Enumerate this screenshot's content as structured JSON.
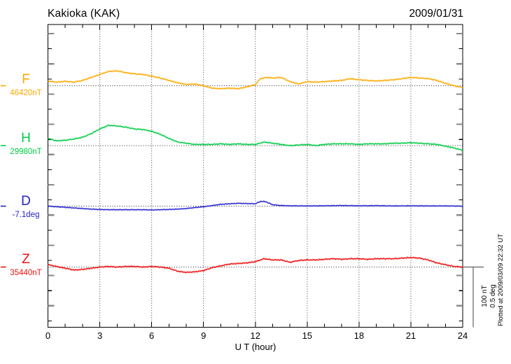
{
  "header": {
    "title": "Kakioka (KAK)",
    "date": "2009/01/31"
  },
  "footer": {
    "xlabel": "U T (hour)",
    "plotted_note": "Plotted at 2009/03/09 22:32 UT"
  },
  "scale_bar": {
    "line1": "100 nT",
    "line2": "0.5 deg"
  },
  "chart_data": {
    "type": "line",
    "title": "Kakioka (KAK)",
    "date": "2009/01/31",
    "xlabel": "U T (hour)",
    "x_range": [
      0,
      24
    ],
    "x_ticks": [
      0,
      3,
      6,
      9,
      12,
      15,
      18,
      21,
      24
    ],
    "grid": "dotted vertical lines every 3 hours; dotted horizontal baseline per trace",
    "legend_position": "left margin, one label per trace",
    "scale": {
      "nT_per_division": 100,
      "deg_per_division": 0.5
    },
    "series": [
      {
        "name": "F",
        "label": "F",
        "baseline_label": "46420nT",
        "unit": "nT",
        "color": "#FFA800",
        "points": [
          [
            0,
            8
          ],
          [
            0.5,
            6
          ],
          [
            1,
            7.5
          ],
          [
            1.5,
            6
          ],
          [
            2,
            9
          ],
          [
            2.5,
            14
          ],
          [
            3,
            19
          ],
          [
            3.5,
            24
          ],
          [
            4,
            25
          ],
          [
            4.5,
            22
          ],
          [
            5,
            20
          ],
          [
            5.5,
            19
          ],
          [
            6,
            16
          ],
          [
            6.5,
            13
          ],
          [
            7,
            9
          ],
          [
            7.5,
            5
          ],
          [
            8,
            2
          ],
          [
            8.5,
            3
          ],
          [
            9,
            0
          ],
          [
            9.5,
            -4
          ],
          [
            10,
            -5
          ],
          [
            10.5,
            -4
          ],
          [
            11,
            -5
          ],
          [
            11.5,
            -2
          ],
          [
            12,
            2
          ],
          [
            12.3,
            12
          ],
          [
            12.7,
            14
          ],
          [
            13,
            13
          ],
          [
            13.5,
            14
          ],
          [
            14,
            7
          ],
          [
            14.5,
            3
          ],
          [
            15,
            7
          ],
          [
            15.5,
            6
          ],
          [
            16,
            7
          ],
          [
            16.5,
            8
          ],
          [
            17,
            9
          ],
          [
            17.5,
            12
          ],
          [
            18,
            10
          ],
          [
            18.5,
            9
          ],
          [
            19,
            8
          ],
          [
            19.5,
            9
          ],
          [
            20,
            10
          ],
          [
            20.5,
            12
          ],
          [
            21,
            14
          ],
          [
            21.5,
            13
          ],
          [
            22,
            12
          ],
          [
            22.5,
            9
          ],
          [
            23,
            4
          ],
          [
            23.5,
            0
          ],
          [
            24,
            -3
          ]
        ]
      },
      {
        "name": "H",
        "label": "H",
        "baseline_label": "29980nT",
        "unit": "nT",
        "color": "#00CC44",
        "points": [
          [
            0,
            12
          ],
          [
            0.5,
            8
          ],
          [
            1,
            9
          ],
          [
            1.5,
            11
          ],
          [
            2,
            14
          ],
          [
            2.5,
            20
          ],
          [
            3,
            28
          ],
          [
            3.5,
            34
          ],
          [
            4,
            33
          ],
          [
            4.5,
            31
          ],
          [
            5,
            28
          ],
          [
            5.5,
            27
          ],
          [
            6,
            24
          ],
          [
            6.5,
            19
          ],
          [
            7,
            12
          ],
          [
            7.5,
            6
          ],
          [
            8,
            4
          ],
          [
            8.5,
            2
          ],
          [
            9,
            2
          ],
          [
            9.5,
            2
          ],
          [
            10,
            3
          ],
          [
            10.5,
            2
          ],
          [
            11,
            3
          ],
          [
            11.5,
            2
          ],
          [
            12,
            2
          ],
          [
            12.5,
            6
          ],
          [
            13,
            4
          ],
          [
            13.5,
            2
          ],
          [
            14,
            0
          ],
          [
            14.5,
            1
          ],
          [
            15,
            2
          ],
          [
            15.5,
            0
          ],
          [
            16,
            2
          ],
          [
            16.5,
            3
          ],
          [
            17,
            3
          ],
          [
            17.5,
            3
          ],
          [
            18,
            2
          ],
          [
            18.5,
            3
          ],
          [
            19,
            3
          ],
          [
            19.5,
            3
          ],
          [
            20,
            4
          ],
          [
            20.5,
            4
          ],
          [
            21,
            5
          ],
          [
            21.5,
            4
          ],
          [
            22,
            3
          ],
          [
            22.5,
            2
          ],
          [
            23,
            -1
          ],
          [
            23.5,
            -4
          ],
          [
            24,
            -8
          ]
        ]
      },
      {
        "name": "D",
        "label": "D",
        "baseline_label": "-7.1deg",
        "unit": "deg",
        "color": "#2222CC",
        "points": [
          [
            0,
            0
          ],
          [
            0.5,
            -0.005
          ],
          [
            1,
            -0.01
          ],
          [
            1.5,
            -0.015
          ],
          [
            2,
            -0.02
          ],
          [
            2.5,
            -0.025
          ],
          [
            3,
            -0.028
          ],
          [
            3.5,
            -0.03
          ],
          [
            4,
            -0.03
          ],
          [
            4.5,
            -0.03
          ],
          [
            5,
            -0.03
          ],
          [
            5.5,
            -0.03
          ],
          [
            6,
            -0.032
          ],
          [
            6.5,
            -0.03
          ],
          [
            7,
            -0.028
          ],
          [
            7.5,
            -0.025
          ],
          [
            8,
            -0.02
          ],
          [
            8.5,
            -0.012
          ],
          [
            9,
            -0.005
          ],
          [
            9.5,
            0.005
          ],
          [
            10,
            0.015
          ],
          [
            10.5,
            0.02
          ],
          [
            11,
            0.024
          ],
          [
            11.5,
            0.022
          ],
          [
            12,
            0.02
          ],
          [
            12.3,
            0.04
          ],
          [
            12.6,
            0.038
          ],
          [
            13,
            0.012
          ],
          [
            13.5,
            0.005
          ],
          [
            14,
            0.003
          ],
          [
            15,
            0.002
          ],
          [
            16,
            0.003
          ],
          [
            17,
            0.005
          ],
          [
            18,
            0.003
          ],
          [
            19,
            0.004
          ],
          [
            20,
            0.002
          ],
          [
            21,
            0.003
          ],
          [
            22,
            0.002
          ],
          [
            23,
            0.002
          ],
          [
            24,
            0
          ]
        ]
      },
      {
        "name": "Z",
        "label": "Z",
        "baseline_label": "35440nT",
        "unit": "nT",
        "color": "#EE1111",
        "points": [
          [
            0,
            4
          ],
          [
            0.5,
            1
          ],
          [
            1,
            -2
          ],
          [
            1.5,
            -5
          ],
          [
            2,
            -4
          ],
          [
            2.5,
            -2
          ],
          [
            3,
            0
          ],
          [
            3.5,
            1
          ],
          [
            4,
            0
          ],
          [
            4.5,
            1
          ],
          [
            5,
            1
          ],
          [
            5.5,
            0
          ],
          [
            6,
            1
          ],
          [
            6.5,
            0
          ],
          [
            7,
            -2
          ],
          [
            7.5,
            -7
          ],
          [
            8,
            -9
          ],
          [
            8.5,
            -8
          ],
          [
            9,
            -6
          ],
          [
            9.5,
            -1
          ],
          [
            10,
            2
          ],
          [
            10.5,
            5
          ],
          [
            11,
            6
          ],
          [
            11.5,
            7
          ],
          [
            12,
            9
          ],
          [
            12.5,
            14
          ],
          [
            13,
            12
          ],
          [
            13.5,
            12
          ],
          [
            14,
            8
          ],
          [
            14.5,
            11
          ],
          [
            15,
            12
          ],
          [
            15.5,
            12
          ],
          [
            16,
            13
          ],
          [
            16.5,
            14
          ],
          [
            17,
            13
          ],
          [
            17.5,
            14
          ],
          [
            18,
            14
          ],
          [
            18.5,
            13
          ],
          [
            19,
            14
          ],
          [
            19.5,
            14
          ],
          [
            20,
            14
          ],
          [
            20.5,
            15
          ],
          [
            21,
            16
          ],
          [
            21.5,
            15
          ],
          [
            22,
            12
          ],
          [
            22.5,
            7
          ],
          [
            23,
            4
          ],
          [
            23.5,
            1
          ],
          [
            24,
            0
          ]
        ]
      }
    ]
  }
}
